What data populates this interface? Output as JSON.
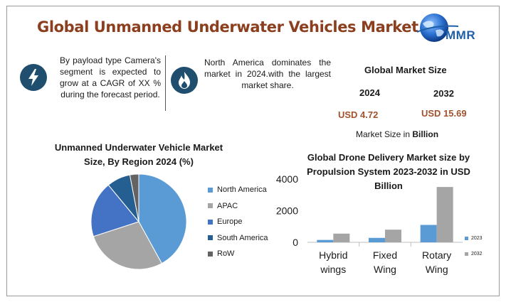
{
  "header": {
    "title": "Global Unmanned Underwater Vehicles Market",
    "logo_text": "MMR",
    "logo_icon": "globe-icon"
  },
  "info_blocks": [
    {
      "icon": "lightning-icon",
      "text": "By payload type Camera's segment is expected to grow at a CAGR of XX % during the forecast period."
    },
    {
      "icon": "flame-icon",
      "text": "North America dominates the market in 2024.with the largest market share."
    }
  ],
  "market_size": {
    "title": "Global Market Size",
    "year_start": "2024",
    "year_end": "2032",
    "value_start": "USD 4.72",
    "value_end": "USD 15.69",
    "note_prefix": "Market Size in ",
    "note_unit": "Billion"
  },
  "colors": {
    "title": "#8b3f1e",
    "icon_bg": "#1f4e6e",
    "value": "#a0522d",
    "north_america": "#5b9bd5",
    "apac": "#a5a5a5",
    "europe": "#4472c4",
    "south_america": "#255e91",
    "row": "#636363",
    "bar_2023": "#5b9bd5",
    "bar_2032": "#a5a5a5"
  },
  "chart_data": [
    {
      "type": "pie",
      "title": "Unmanned Underwater Vehicle Market Size, By Region 2024 (%)",
      "categories": [
        "North America",
        "APAC",
        "Europe",
        "South America",
        "RoW"
      ],
      "values": [
        42,
        28,
        19,
        8,
        3
      ],
      "colors": [
        "#5b9bd5",
        "#a5a5a5",
        "#4472c4",
        "#255e91",
        "#636363"
      ],
      "legend": "right"
    },
    {
      "type": "bar",
      "title": "Global Drone Delivery Market  size by Propulsion System 2023-2032 in USD Billion",
      "categories": [
        "Hybrid wings",
        "Fixed Wing",
        "Rotary Wing"
      ],
      "category_lines": [
        [
          "Hybrid",
          "wings"
        ],
        [
          "Fixed",
          "Wing"
        ],
        [
          "Rotary",
          "Wing"
        ]
      ],
      "series": [
        {
          "name": "2023",
          "values": [
            150,
            280,
            1100
          ],
          "color": "#5b9bd5"
        },
        {
          "name": "2032",
          "values": [
            550,
            800,
            3500
          ],
          "color": "#a5a5a5"
        }
      ],
      "yticks": [
        0,
        2000,
        4000
      ],
      "ylim": [
        0,
        4000
      ],
      "grid": false,
      "legend": "right"
    }
  ]
}
